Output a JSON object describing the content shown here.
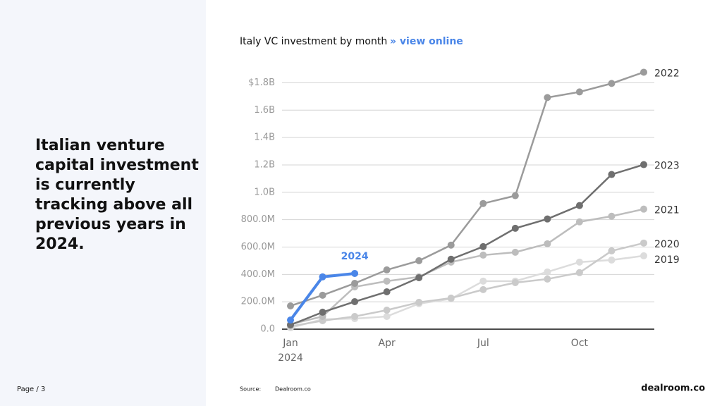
{
  "page": {
    "heading": [
      "Italian venture",
      "capital investment",
      "is currently",
      "tracking above all",
      "previous years in",
      "2024."
    ],
    "page_label": "Page / 3",
    "source_label": "Source:",
    "source": "Dealroom.co",
    "logo": "dealroom.co"
  },
  "chart_data": {
    "type": "line",
    "title": "Italy VC investment by month",
    "link": "» view online",
    "categories": [
      "Jan",
      null,
      null,
      "Apr",
      null,
      null,
      "Jul",
      null,
      null,
      "Oct",
      null,
      null
    ],
    "x_sublabel": "2024",
    "ylim": [
      0,
      1900
    ],
    "yticks": [
      {
        "value": 0,
        "label": "0.0"
      },
      {
        "value": 200,
        "label": "200.0M"
      },
      {
        "value": 400,
        "label": "400.0M"
      },
      {
        "value": 600,
        "label": "600.0M"
      },
      {
        "value": 800,
        "label": "800.0M"
      },
      {
        "value": 1000,
        "label": "1.0B"
      },
      {
        "value": 1200,
        "label": "1.2B"
      },
      {
        "value": 1400,
        "label": "1.4B"
      },
      {
        "value": 1600,
        "label": "1.6B"
      },
      {
        "value": 1800,
        "label": "$1.8B"
      }
    ],
    "grid": true,
    "series": [
      {
        "name": "2019",
        "color": "#dcdcdc",
        "values": [
          10,
          72,
          77,
          93,
          186,
          222,
          351,
          351,
          418,
          490,
          505,
          536
        ]
      },
      {
        "name": "2020",
        "color": "#cacaca",
        "values": [
          21,
          62,
          93,
          139,
          196,
          227,
          289,
          340,
          366,
          413,
          572,
          629
        ]
      },
      {
        "name": "2021",
        "color": "#bdbdbd",
        "values": [
          36,
          93,
          309,
          351,
          382,
          490,
          541,
          562,
          624,
          784,
          825,
          877
        ]
      },
      {
        "name": "2022",
        "color": "#9b9b9b",
        "values": [
          170,
          248,
          335,
          433,
          500,
          614,
          918,
          975,
          1692,
          1733,
          1795,
          1877
        ]
      },
      {
        "name": "2023",
        "color": "#6f6f6f",
        "values": [
          31,
          124,
          201,
          273,
          376,
          511,
          603,
          737,
          805,
          903,
          1130,
          1202
        ]
      },
      {
        "name": "2024",
        "color": "#4a86e8",
        "values": [
          67,
          382,
          407,
          null,
          null,
          null,
          null,
          null,
          null,
          null,
          null,
          null
        ]
      }
    ]
  }
}
